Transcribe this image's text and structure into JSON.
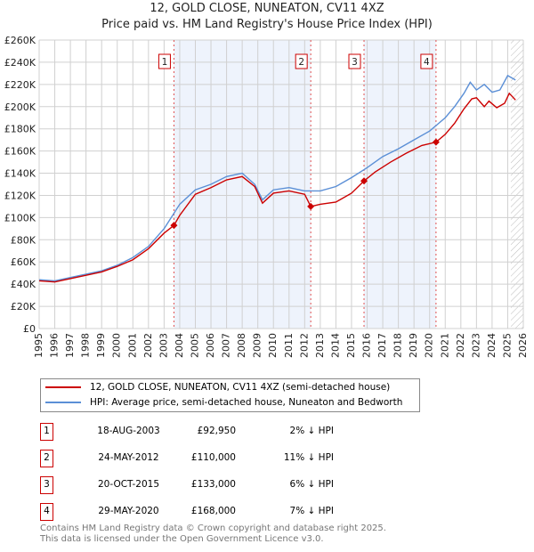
{
  "chart_data": {
    "type": "line",
    "title": "12, GOLD CLOSE, NUNEATON, CV11 4XZ",
    "subtitle": "Price paid vs. HM Land Registry's House Price Index (HPI)",
    "xlim": [
      1995,
      2026
    ],
    "ylim": [
      0,
      260000
    ],
    "x_ticks": [
      "1995",
      "1996",
      "1997",
      "1998",
      "1999",
      "2000",
      "2001",
      "2002",
      "2003",
      "2004",
      "2005",
      "2006",
      "2007",
      "2008",
      "2009",
      "2010",
      "2011",
      "2012",
      "2013",
      "2014",
      "2015",
      "2016",
      "2017",
      "2018",
      "2019",
      "2020",
      "2021",
      "2022",
      "2023",
      "2024",
      "2025",
      "2026"
    ],
    "y_ticks": [
      "£0",
      "£20K",
      "£40K",
      "£60K",
      "£80K",
      "£100K",
      "£120K",
      "£140K",
      "£160K",
      "£180K",
      "£200K",
      "£220K",
      "£240K",
      "£260K"
    ],
    "series": [
      {
        "name": "12, GOLD CLOSE, NUNEATON, CV11 4XZ (semi-detached house)",
        "color": "#cc0000",
        "x": [
          1995,
          1996,
          1997,
          1998,
          1999,
          2000,
          2001,
          2002,
          2003,
          2003.63,
          2004,
          2005,
          2006,
          2007,
          2008,
          2008.8,
          2009.3,
          2010,
          2011,
          2012,
          2012.39,
          2013,
          2014,
          2015,
          2015.8,
          2016.5,
          2017.5,
          2018.5,
          2019.5,
          2020.41,
          2021,
          2021.6,
          2022.2,
          2022.7,
          2023,
          2023.5,
          2023.8,
          2024.3,
          2024.8,
          2025.1,
          2025.5
        ],
        "y": [
          43000,
          42000,
          45000,
          48000,
          51000,
          56000,
          62000,
          72000,
          86000,
          92950,
          102000,
          121000,
          127000,
          134000,
          137000,
          128000,
          113000,
          122000,
          124000,
          121000,
          110000,
          112000,
          114000,
          122000,
          133000,
          141000,
          150000,
          158000,
          165000,
          168000,
          175000,
          185000,
          198000,
          207000,
          208000,
          200000,
          205000,
          199000,
          203000,
          212000,
          206000
        ]
      },
      {
        "name": "HPI: Average price, semi-detached house, Nuneaton and Bedworth",
        "color": "#5b8fd6",
        "x": [
          1995,
          1996,
          1997,
          1998,
          1999,
          2000,
          2001,
          2002,
          2003,
          2004,
          2005,
          2006,
          2007,
          2008,
          2008.8,
          2009.3,
          2010,
          2011,
          2012,
          2013,
          2014,
          2015,
          2016,
          2017,
          2018,
          2019,
          2020,
          2021,
          2021.6,
          2022.2,
          2022.6,
          2023,
          2023.5,
          2024,
          2024.5,
          2025,
          2025.5
        ],
        "y": [
          44000,
          43000,
          46000,
          49000,
          52000,
          57000,
          64000,
          74000,
          90000,
          112000,
          125000,
          130000,
          137000,
          140000,
          130000,
          116000,
          125000,
          127000,
          124000,
          124000,
          128000,
          136000,
          145000,
          155000,
          162000,
          170000,
          178000,
          190000,
          200000,
          212000,
          222000,
          215000,
          220000,
          213000,
          215000,
          228000,
          224000
        ]
      }
    ],
    "sales": [
      {
        "n": "1",
        "date": "18-AUG-2003",
        "price": "£92,950",
        "hpi": "2% ↓ HPI",
        "x": 2003.63,
        "y": 92950
      },
      {
        "n": "2",
        "date": "24-MAY-2012",
        "price": "£110,000",
        "hpi": "11% ↓ HPI",
        "x": 2012.39,
        "y": 110000
      },
      {
        "n": "3",
        "date": "20-OCT-2015",
        "price": "£133,000",
        "hpi": "6% ↓ HPI",
        "x": 2015.8,
        "y": 133000
      },
      {
        "n": "4",
        "date": "29-MAY-2020",
        "price": "£168,000",
        "hpi": "7% ↓ HPI",
        "x": 2020.41,
        "y": 168000
      }
    ],
    "shaded": [
      [
        2003.63,
        2012.39
      ],
      [
        2015.8,
        2020.41
      ]
    ],
    "forecast_from": 2025.2
  },
  "legend": {
    "red": "12, GOLD CLOSE, NUNEATON, CV11 4XZ (semi-detached house)",
    "blue": "HPI: Average price, semi-detached house, Nuneaton and Bedworth"
  },
  "footer": {
    "line1": "Contains HM Land Registry data © Crown copyright and database right 2025.",
    "line2": "This data is licensed under the Open Government Licence v3.0."
  }
}
